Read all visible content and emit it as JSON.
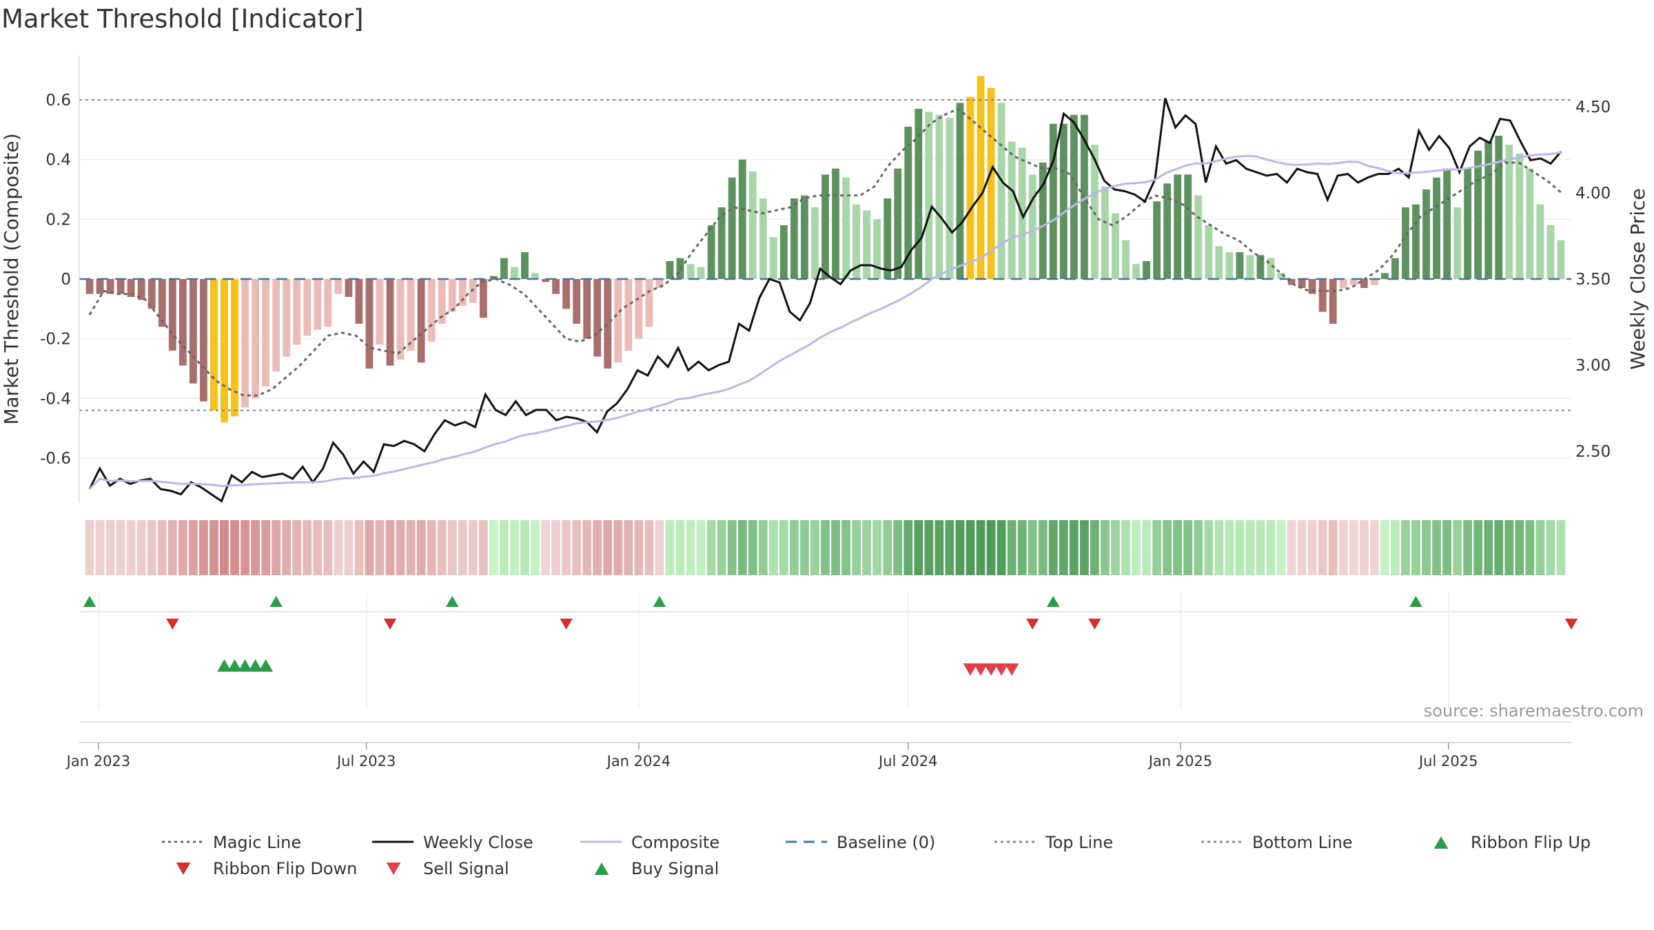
{
  "chart_data": {
    "type": "bar",
    "title": "Market Threshold [Indicator]",
    "ylabel": "Market Threshold (Composite)",
    "y2label": "Weekly Close Price",
    "ylim": [
      -0.75,
      0.75
    ],
    "y2lim": [
      2.2,
      4.8
    ],
    "yticks": [
      "0.6",
      "0.4",
      "0.2",
      "0",
      "-0.2",
      "-0.4",
      "-0.6"
    ],
    "yticks_values": [
      0.6,
      0.4,
      0.2,
      0,
      -0.2,
      -0.4,
      -0.6
    ],
    "y2ticks": [
      "4.50",
      "4.00",
      "3.50",
      "3.00",
      "2.50"
    ],
    "y2ticks_values": [
      4.5,
      4.0,
      3.5,
      3.0,
      2.5
    ],
    "xlim": [
      "2022-12-19",
      "2025-09-22"
    ],
    "xticks": [
      {
        "date": "2023-01-01",
        "label": "Jan 2023"
      },
      {
        "date": "2023-07-01",
        "label": "Jul 2023"
      },
      {
        "date": "2024-01-01",
        "label": "Jan 2024"
      },
      {
        "date": "2024-07-01",
        "label": "Jul 2024"
      },
      {
        "date": "2025-01-01",
        "label": "Jan 2025"
      },
      {
        "date": "2025-07-01",
        "label": "Jul 2025"
      }
    ],
    "top_line": 0.6,
    "bottom_line": -0.44,
    "baseline": 0,
    "composite_bar_values": [
      -0.05,
      -0.05,
      -0.05,
      -0.05,
      -0.06,
      -0.07,
      -0.1,
      -0.16,
      -0.24,
      -0.29,
      -0.35,
      -0.41,
      -0.44,
      -0.48,
      -0.46,
      -0.43,
      -0.4,
      -0.36,
      -0.31,
      -0.26,
      -0.22,
      -0.19,
      -0.17,
      -0.16,
      -0.05,
      -0.06,
      -0.15,
      -0.3,
      -0.22,
      -0.29,
      -0.27,
      -0.24,
      -0.28,
      -0.21,
      -0.15,
      -0.11,
      -0.09,
      -0.08,
      -0.13,
      0.01,
      0.07,
      0.04,
      0.09,
      0.02,
      -0.01,
      -0.05,
      -0.1,
      -0.15,
      -0.2,
      -0.26,
      -0.3,
      -0.28,
      -0.24,
      -0.2,
      -0.16,
      -0.03,
      0.06,
      0.07,
      0.05,
      0.04,
      0.18,
      0.24,
      0.34,
      0.4,
      0.36,
      0.27,
      0.14,
      0.18,
      0.27,
      0.28,
      0.24,
      0.35,
      0.37,
      0.34,
      0.25,
      0.23,
      0.2,
      0.27,
      0.37,
      0.51,
      0.57,
      0.56,
      0.55,
      0.54,
      0.59,
      0.61,
      0.68,
      0.64,
      0.59,
      0.46,
      0.44,
      0.35,
      0.39,
      0.52,
      0.52,
      0.55,
      0.55,
      0.45,
      0.31,
      0.22,
      0.13,
      0.05,
      0.06,
      0.26,
      0.32,
      0.35,
      0.35,
      0.28,
      0.18,
      0.11,
      0.09,
      0.09,
      0.08,
      0.08,
      0.07,
      0.02,
      -0.02,
      -0.03,
      -0.05,
      -0.11,
      -0.15,
      -0.03,
      -0.02,
      -0.03,
      -0.02,
      0.02,
      0.07,
      0.24,
      0.25,
      0.3,
      0.34,
      0.37,
      0.24,
      0.37,
      0.43,
      0.46,
      0.48,
      0.45,
      0.42,
      0.37,
      0.25,
      0.18,
      0.13
    ],
    "magic_line": [
      -0.12,
      -0.04,
      -0.05,
      -0.05,
      -0.07,
      -0.13,
      -0.19,
      -0.24,
      -0.29,
      -0.34,
      -0.37,
      -0.39,
      -0.39,
      -0.37,
      -0.33,
      -0.29,
      -0.24,
      -0.19,
      -0.18,
      -0.19,
      -0.23,
      -0.24,
      -0.25,
      -0.21,
      -0.17,
      -0.13,
      -0.1,
      -0.05,
      -0.01,
      0.0,
      -0.02,
      -0.05,
      -0.1,
      -0.15,
      -0.2,
      -0.21,
      -0.19,
      -0.15,
      -0.1,
      -0.07,
      -0.04,
      -0.02,
      0.02,
      0.09,
      0.15,
      0.21,
      0.24,
      0.23,
      0.22,
      0.23,
      0.24,
      0.27,
      0.28,
      0.28,
      0.28,
      0.28,
      0.31,
      0.38,
      0.43,
      0.47,
      0.52,
      0.55,
      0.57,
      0.53,
      0.49,
      0.45,
      0.41,
      0.39,
      0.37,
      0.37,
      0.35,
      0.27,
      0.2,
      0.18,
      0.21,
      0.25,
      0.28,
      0.27,
      0.25,
      0.21,
      0.18,
      0.15,
      0.13,
      0.09,
      0.06,
      0.02,
      -0.02,
      -0.04,
      -0.04,
      -0.04,
      -0.03,
      0.0,
      0.03,
      0.08,
      0.15,
      0.21,
      0.24,
      0.27,
      0.3,
      0.33,
      0.35,
      0.39,
      0.39,
      0.36,
      0.33,
      0.29
    ],
    "magic_line_dates": [
      "2022-12-26",
      "2023-01-02",
      "2023-01-16",
      "2023-01-30",
      "2023-02-13",
      "2023-02-27",
      "2023-03-13",
      "2023-03-27",
      "2023-04-10",
      "2023-04-24",
      "2023-05-08",
      "2023-05-22",
      "2023-06-05",
      "2023-06-19",
      "2023-07-03",
      "2023-07-17",
      "2023-07-31",
      "2023-08-14",
      "2023-08-28",
      "2023-09-11",
      "2023-09-25",
      "2023-10-09",
      "2023-10-23",
      "2023-11-06",
      "2023-11-20",
      "2023-12-04",
      "2023-12-18",
      "2024-01-01",
      "2024-01-15",
      "2024-01-29",
      "2024-02-12",
      "2024-02-26",
      "2024-03-11",
      "2024-03-25",
      "2024-04-08",
      "2024-04-22",
      "2024-05-06",
      "2024-05-20",
      "2024-06-03",
      "2024-06-17",
      "2024-07-01",
      "2024-07-15",
      "2024-07-29",
      "2024-08-12",
      "2024-08-26",
      "2024-09-09",
      "2024-09-23",
      "2024-10-07",
      "2024-10-21",
      "2024-11-04",
      "2024-11-18",
      "2024-12-02",
      "2024-12-16",
      "2024-12-30",
      "2025-01-13",
      "2025-01-27",
      "2025-02-10",
      "2025-02-24",
      "2025-03-10",
      "2025-03-24",
      "2025-04-07",
      "2025-04-21",
      "2025-05-05",
      "2025-05-19",
      "2025-06-02",
      "2025-06-16",
      "2025-06-30",
      "2025-07-14",
      "2025-07-28",
      "2025-08-11",
      "2025-08-25",
      "2025-09-08",
      "2025-09-15",
      "2025-09-22",
      "2025-09-29",
      "2025-10-06",
      "2025-10-13",
      "2025-10-20",
      "2025-10-27",
      "2025-11-03",
      "2025-11-10",
      "2025-11-17",
      "2025-11-24",
      "2025-12-01",
      "2025-12-08",
      "2025-12-15",
      "2025-12-22",
      "2025-12-29",
      "2026-01-05",
      "2026-01-12",
      "2026-01-19",
      "2026-01-26",
      "2026-02-02",
      "2026-02-09",
      "2026-02-16",
      "2026-02-23",
      "2026-03-02",
      "2026-03-09",
      "2026-03-16",
      "2026-03-23",
      "2026-03-30",
      "2026-04-06",
      "2026-04-13",
      "2026-04-20",
      "2026-04-27",
      "2026-05-04"
    ],
    "weekly_close": [
      2.28,
      2.4,
      2.3,
      2.34,
      2.31,
      2.33,
      2.34,
      2.28,
      2.27,
      2.25,
      2.32,
      2.29,
      2.25,
      2.21,
      2.36,
      2.32,
      2.38,
      2.35,
      2.36,
      2.37,
      2.34,
      2.41,
      2.32,
      2.4,
      2.55,
      2.48,
      2.37,
      2.44,
      2.38,
      2.54,
      2.53,
      2.56,
      2.54,
      2.5,
      2.6,
      2.68,
      2.65,
      2.67,
      2.64,
      2.83,
      2.74,
      2.71,
      2.79,
      2.71,
      2.74,
      2.74,
      2.68,
      2.7,
      2.69,
      2.67,
      2.61,
      2.73,
      2.78,
      2.86,
      2.97,
      2.94,
      3.05,
      2.99,
      3.1,
      2.97,
      3.02,
      2.97,
      3.0,
      3.02,
      3.24,
      3.2,
      3.39,
      3.5,
      3.48,
      3.31,
      3.26,
      3.36,
      3.56,
      3.51,
      3.47,
      3.55,
      3.58,
      3.58,
      3.56,
      3.55,
      3.57,
      3.67,
      3.74,
      3.92,
      3.85,
      3.77,
      3.83,
      3.92,
      4.0,
      4.15,
      4.06,
      4.01,
      3.86,
      3.97,
      4.05,
      4.19,
      4.46,
      4.41,
      4.31,
      4.2,
      4.07,
      4.02,
      4.01,
      3.99,
      3.95,
      4.08,
      4.55,
      4.38,
      4.45,
      4.4,
      4.06,
      4.27,
      4.17,
      4.19,
      4.14,
      4.12,
      4.1,
      4.11,
      4.06,
      4.14,
      4.12,
      4.11,
      3.96,
      4.1,
      4.11,
      4.06,
      4.09,
      4.11,
      4.11,
      4.14,
      4.09,
      4.36,
      4.25,
      4.33,
      4.26,
      4.12,
      4.27,
      4.32,
      4.29,
      4.43,
      4.42,
      4.3,
      4.19,
      4.2,
      4.17,
      4.24
    ]
  },
  "legend": [
    {
      "label": "Magic Line",
      "style": "dotted",
      "color": "#666666"
    },
    {
      "label": "Weekly Close",
      "style": "solid",
      "color": "#111111"
    },
    {
      "label": "Composite",
      "style": "solid",
      "color": "#bcb8e6"
    },
    {
      "label": "Baseline (0)",
      "style": "dashed",
      "color": "#3b78a8"
    },
    {
      "label": "Top Line",
      "style": "dotted",
      "color": "#888888"
    },
    {
      "label": "Bottom Line",
      "style": "dotted",
      "color": "#888888"
    },
    {
      "label": "Ribbon Flip Up",
      "style": "triangle-up",
      "color": "#2a9d47"
    },
    {
      "label": "Ribbon Flip Down",
      "style": "triangle-down",
      "color": "#d43030"
    },
    {
      "label": "Sell Signal",
      "style": "triangle-down",
      "color": "#e0404a"
    },
    {
      "label": "Buy Signal",
      "style": "triangle-up",
      "color": "#2a9d47"
    }
  ],
  "ribbon_flip_up_dates": [
    "2022-12-26",
    "2023-05-01",
    "2023-08-28",
    "2024-01-15",
    "2024-10-07",
    "2025-06-09"
  ],
  "ribbon_flip_down_dates": [
    "2023-02-20",
    "2023-07-17",
    "2023-11-13",
    "2024-09-23",
    "2024-11-04",
    "2025-09-22"
  ],
  "buy_signal_dates": [
    "2023-03-27",
    "2023-04-03",
    "2023-04-10",
    "2023-04-17",
    "2023-04-24"
  ],
  "sell_signal_dates": [
    "2024-08-12",
    "2024-08-19",
    "2024-08-26",
    "2024-09-02",
    "2024-09-09"
  ],
  "source": "source: sharemaestro.com",
  "colors": {
    "strong_green": "#5e9160",
    "light_green": "#a8d6a9",
    "strong_red": "#a8706c",
    "light_red": "#ebbbb8",
    "yellow": "#f5c11b",
    "grid": "#eeeeee"
  }
}
